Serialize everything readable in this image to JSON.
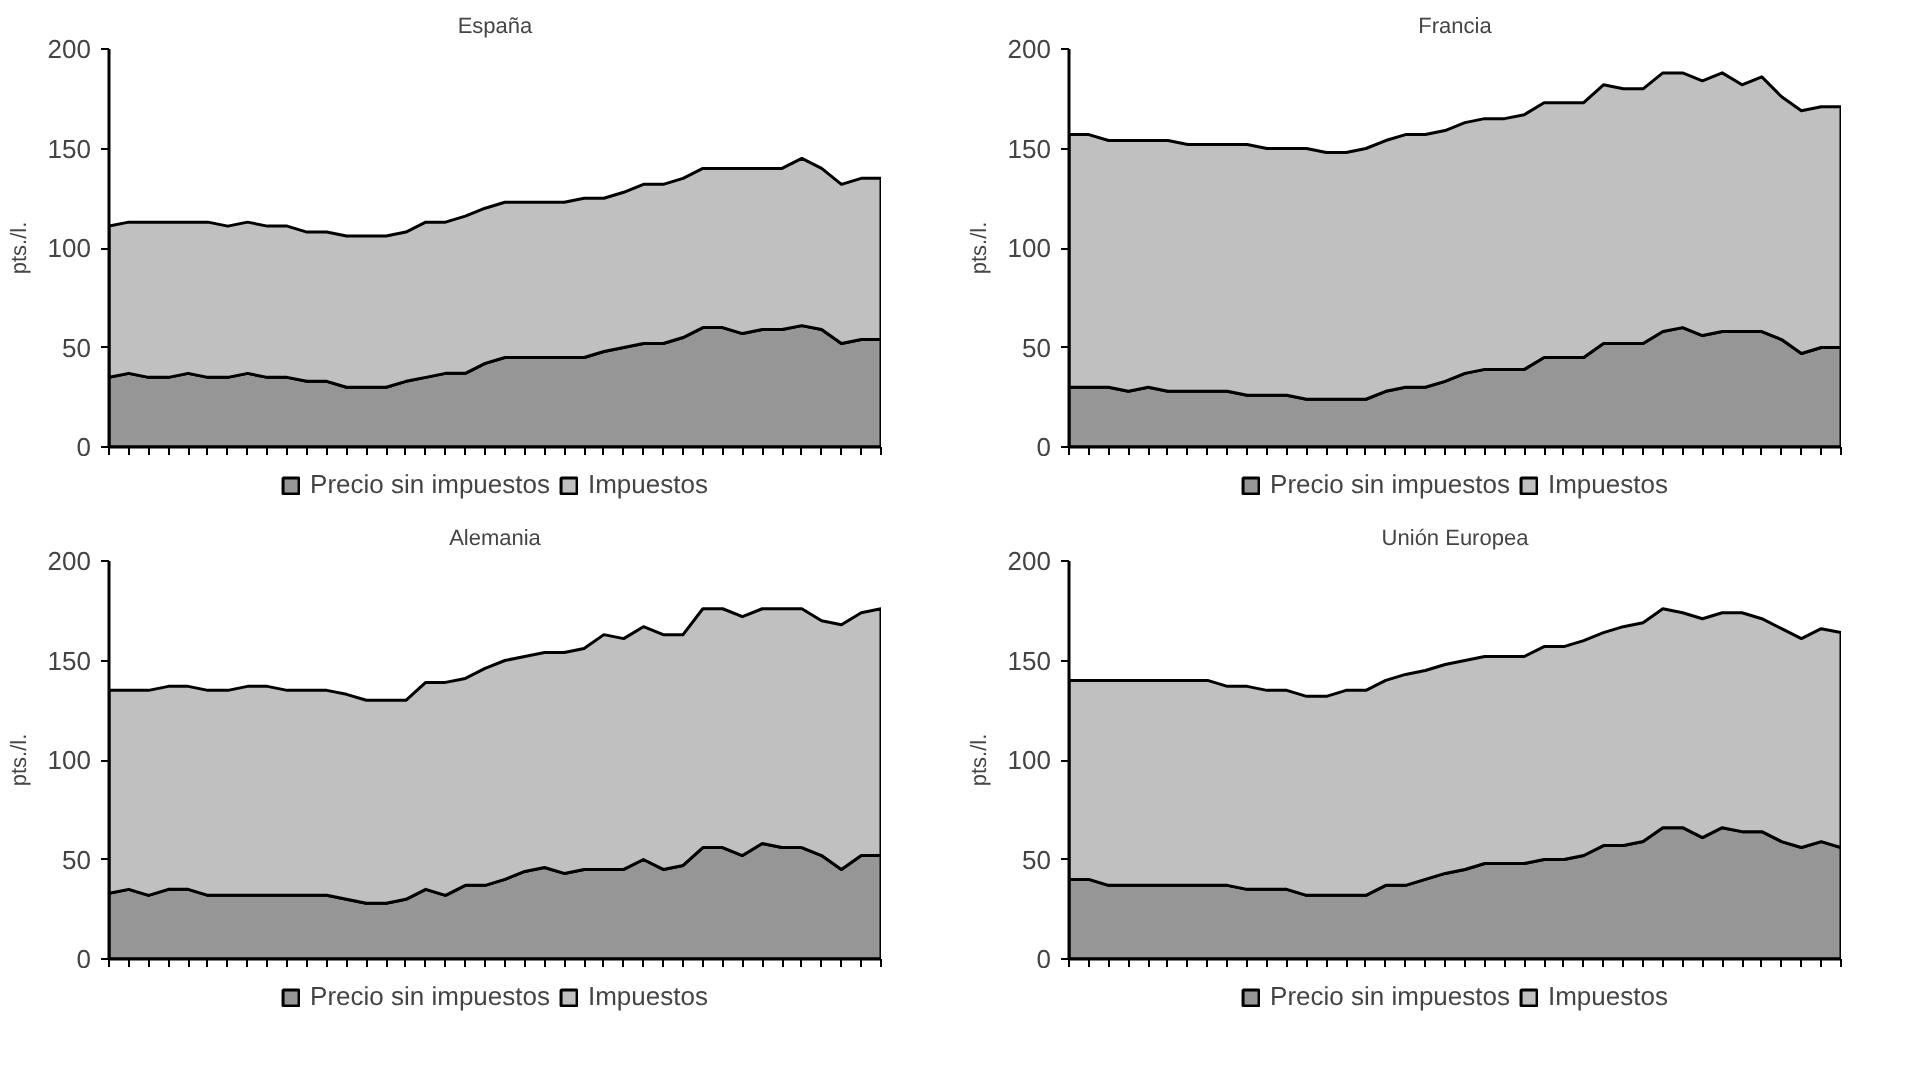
{
  "chart_data": [
    {
      "type": "area",
      "title": "España",
      "ylabel": "pts./l.",
      "stacked": true,
      "legend": "bottom",
      "grid": false,
      "ylim": [
        0,
        200
      ],
      "yticks": [
        0,
        50,
        100,
        150,
        200
      ],
      "categories": [
        null,
        null,
        null,
        null,
        null,
        null,
        null,
        null,
        null,
        null,
        null,
        null,
        null,
        null,
        null,
        null,
        null,
        null,
        null,
        null,
        null,
        null,
        null,
        null,
        null,
        null,
        null,
        null,
        null,
        null,
        null,
        null,
        null,
        null,
        null,
        null,
        null,
        null,
        null,
        null
      ],
      "series": [
        {
          "name": "Precio sin impuestos",
          "color": "#969696",
          "values": [
            35,
            37,
            35,
            35,
            37,
            35,
            35,
            37,
            35,
            35,
            33,
            33,
            30,
            30,
            30,
            33,
            35,
            37,
            37,
            42,
            45,
            45,
            45,
            45,
            45,
            48,
            50,
            52,
            52,
            55,
            60,
            60,
            57,
            59,
            59,
            61,
            59,
            52,
            54,
            54
          ]
        },
        {
          "name": "Impuestos",
          "color": "#c0c0c0",
          "values": [
            76,
            76,
            78,
            78,
            76,
            78,
            76,
            76,
            76,
            76,
            75,
            75,
            76,
            76,
            76,
            75,
            78,
            76,
            79,
            78,
            78,
            78,
            78,
            78,
            80,
            77,
            78,
            80,
            80,
            80,
            80,
            80,
            83,
            81,
            81,
            84,
            81,
            80,
            81,
            81
          ]
        }
      ]
    },
    {
      "type": "area",
      "title": "Francia",
      "ylabel": "pts./l.",
      "stacked": true,
      "legend": "bottom",
      "grid": false,
      "ylim": [
        0,
        200
      ],
      "yticks": [
        0,
        50,
        100,
        150,
        200
      ],
      "categories": [
        null,
        null,
        null,
        null,
        null,
        null,
        null,
        null,
        null,
        null,
        null,
        null,
        null,
        null,
        null,
        null,
        null,
        null,
        null,
        null,
        null,
        null,
        null,
        null,
        null,
        null,
        null,
        null,
        null,
        null,
        null,
        null,
        null,
        null,
        null,
        null,
        null,
        null,
        null,
        null
      ],
      "series": [
        {
          "name": "Precio sin impuestos",
          "color": "#969696",
          "values": [
            30,
            30,
            30,
            28,
            30,
            28,
            28,
            28,
            28,
            26,
            26,
            26,
            24,
            24,
            24,
            24,
            28,
            30,
            30,
            33,
            37,
            39,
            39,
            39,
            45,
            45,
            45,
            52,
            52,
            52,
            58,
            60,
            56,
            58,
            58,
            58,
            54,
            47,
            50,
            50
          ]
        },
        {
          "name": "Impuestos",
          "color": "#c0c0c0",
          "values": [
            127,
            127,
            124,
            126,
            124,
            126,
            124,
            124,
            124,
            126,
            124,
            124,
            126,
            124,
            124,
            126,
            126,
            127,
            127,
            126,
            126,
            126,
            126,
            128,
            128,
            128,
            128,
            130,
            128,
            128,
            130,
            128,
            128,
            130,
            124,
            128,
            122,
            122,
            121,
            121
          ]
        }
      ]
    },
    {
      "type": "area",
      "title": "Alemania",
      "ylabel": "pts./l.",
      "stacked": true,
      "legend": "bottom",
      "grid": false,
      "ylim": [
        0,
        200
      ],
      "yticks": [
        0,
        50,
        100,
        150,
        200
      ],
      "categories": [
        null,
        null,
        null,
        null,
        null,
        null,
        null,
        null,
        null,
        null,
        null,
        null,
        null,
        null,
        null,
        null,
        null,
        null,
        null,
        null,
        null,
        null,
        null,
        null,
        null,
        null,
        null,
        null,
        null,
        null,
        null,
        null,
        null,
        null,
        null,
        null,
        null,
        null,
        null,
        null
      ],
      "series": [
        {
          "name": "Precio sin impuestos",
          "color": "#969696",
          "values": [
            33,
            35,
            32,
            35,
            35,
            32,
            32,
            32,
            32,
            32,
            32,
            32,
            30,
            28,
            28,
            30,
            35,
            32,
            37,
            37,
            40,
            44,
            46,
            43,
            45,
            45,
            45,
            50,
            45,
            47,
            56,
            56,
            52,
            58,
            56,
            56,
            52,
            45,
            52,
            52
          ]
        },
        {
          "name": "Impuestos",
          "color": "#c0c0c0",
          "values": [
            102,
            100,
            103,
            102,
            102,
            103,
            103,
            105,
            105,
            103,
            103,
            103,
            103,
            102,
            102,
            100,
            104,
            107,
            104,
            109,
            110,
            108,
            108,
            111,
            111,
            118,
            116,
            117,
            118,
            116,
            120,
            120,
            120,
            118,
            120,
            120,
            118,
            123,
            122,
            124
          ]
        }
      ]
    },
    {
      "type": "area",
      "title": "Unión Europea",
      "ylabel": "pts./l.",
      "stacked": true,
      "legend": "bottom",
      "grid": false,
      "ylim": [
        0,
        200
      ],
      "yticks": [
        0,
        50,
        100,
        150,
        200
      ],
      "categories": [
        null,
        null,
        null,
        null,
        null,
        null,
        null,
        null,
        null,
        null,
        null,
        null,
        null,
        null,
        null,
        null,
        null,
        null,
        null,
        null,
        null,
        null,
        null,
        null,
        null,
        null,
        null,
        null,
        null,
        null,
        null,
        null,
        null,
        null,
        null,
        null,
        null,
        null,
        null,
        null
      ],
      "series": [
        {
          "name": "Precio sin impuestos",
          "color": "#969696",
          "values": [
            40,
            40,
            37,
            37,
            37,
            37,
            37,
            37,
            37,
            35,
            35,
            35,
            32,
            32,
            32,
            32,
            37,
            37,
            40,
            43,
            45,
            48,
            48,
            48,
            50,
            50,
            52,
            57,
            57,
            59,
            66,
            66,
            61,
            66,
            64,
            64,
            59,
            56,
            59,
            56
          ]
        },
        {
          "name": "Impuestos",
          "color": "#c0c0c0",
          "values": [
            100,
            100,
            103,
            103,
            103,
            103,
            103,
            103,
            100,
            102,
            100,
            100,
            100,
            100,
            103,
            103,
            103,
            106,
            105,
            105,
            105,
            104,
            104,
            104,
            107,
            107,
            108,
            107,
            110,
            110,
            110,
            108,
            110,
            108,
            110,
            107,
            107,
            105,
            107,
            108
          ]
        }
      ]
    }
  ]
}
